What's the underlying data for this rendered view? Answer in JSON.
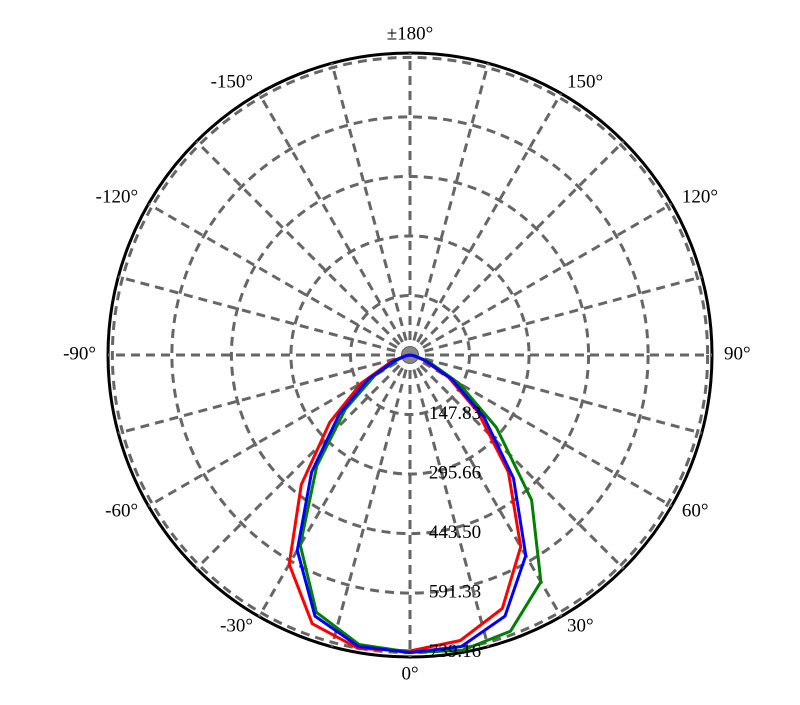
{
  "chart_data": {
    "type": "polar",
    "theta": [
      -90,
      -80,
      -70,
      -60,
      -50,
      -40,
      -30,
      -20,
      -10,
      0,
      10,
      20,
      30,
      40,
      50,
      60,
      70,
      80,
      90
    ],
    "series": [
      {
        "color": "#ff0000",
        "values": [
          0,
          12,
          50,
          140,
          260,
          420,
          600,
          710,
          740,
          735,
          720,
          670,
          550,
          380,
          220,
          110,
          35,
          8,
          0
        ]
      },
      {
        "color": "#008000",
        "values": [
          0,
          8,
          30,
          100,
          210,
          360,
          545,
          680,
          730,
          738,
          745,
          730,
          650,
          470,
          280,
          140,
          50,
          12,
          0
        ]
      },
      {
        "color": "#0000ff",
        "values": [
          0,
          10,
          40,
          120,
          230,
          380,
          560,
          690,
          735,
          739,
          735,
          690,
          575,
          400,
          240,
          120,
          40,
          10,
          0
        ]
      }
    ],
    "rlim": [
      0,
      750
    ],
    "rticks": [
      147.83,
      295.66,
      {
        "value": 443.5,
        "label": "443.50"
      },
      591.33,
      739.16
    ],
    "thetaticks": [
      {
        "value": 0,
        "label": "0°"
      },
      {
        "value": 30,
        "label": "30°"
      },
      {
        "value": 60,
        "label": "60°"
      },
      {
        "value": 90,
        "label": "90°"
      },
      {
        "value": 120,
        "label": "120°"
      },
      {
        "value": 150,
        "label": "150°"
      },
      {
        "value": 180,
        "label": "±180°"
      },
      {
        "value": -150,
        "label": "-150°"
      },
      {
        "value": -120,
        "label": "-120°"
      },
      {
        "value": -90,
        "label": "-90°"
      },
      {
        "value": -60,
        "label": "-60°"
      },
      {
        "value": -30,
        "label": "-30°"
      }
    ],
    "theta_minor_ticks": [
      -165,
      -135,
      -105,
      -75,
      -45,
      -15,
      15,
      45,
      75,
      105,
      135,
      165
    ],
    "grid": true
  }
}
